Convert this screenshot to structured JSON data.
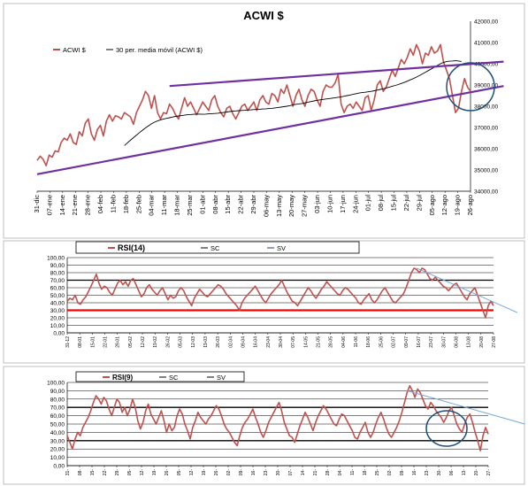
{
  "chart_data": [
    {
      "type": "line",
      "title": "ACWI $",
      "legend": [
        "ACWI $",
        "30 per. media móvil (ACWI $)"
      ],
      "legend_placement": "top-left",
      "y_axis_side": "right",
      "ylim": [
        34000,
        42000
      ],
      "yticks": [
        "34000,00",
        "35000,00",
        "36000,00",
        "37000,00",
        "38000,00",
        "39000,00",
        "40000,00",
        "41000,00",
        "42000,00"
      ],
      "x_ticks": [
        "31-dic",
        "07-ene",
        "14-ene",
        "21-ene",
        "28-ene",
        "04-feb",
        "11-feb",
        "18-feb",
        "25-feb",
        "04-mar",
        "11-mar",
        "18-mar",
        "25-mar",
        "01-abr",
        "08-abr",
        "15-abr",
        "22-abr",
        "29-abr",
        "06-may",
        "13-may",
        "20-may",
        "27-may",
        "03-jun",
        "10-jun",
        "17-jun",
        "24-jun",
        "01-jul",
        "08-jul",
        "15-jul",
        "22-jul",
        "29-jul",
        "05-ago",
        "12-ago",
        "19-ago",
        "26-ago"
      ],
      "series": [
        {
          "name": "ACWI $",
          "color": "#c0504d",
          "values": [
            35450,
            35650,
            35500,
            35200,
            35700,
            35600,
            35900,
            35850,
            36300,
            36500,
            36400,
            36700,
            36300,
            36200,
            36800,
            36600,
            37200,
            37400,
            36700,
            36400,
            36900,
            37100,
            36600,
            37300,
            37600,
            37300,
            37550,
            37500,
            37400,
            37700,
            37600,
            37500,
            37150,
            37700,
            38000,
            38300,
            38700,
            38500,
            37900,
            38500,
            37700,
            37400,
            37700,
            37650,
            38100,
            37900,
            37600,
            37400,
            37900,
            38400,
            38000,
            38200,
            37900,
            37600,
            37900,
            38200,
            38000,
            37800,
            38300,
            38500,
            38000,
            37700,
            37500,
            37900,
            38000,
            37650,
            37400,
            37700,
            38000,
            38100,
            37800,
            38000,
            38200,
            37800,
            38300,
            38500,
            38200,
            38100,
            38600,
            38500,
            38200,
            38800,
            38600,
            39000,
            38500,
            38000,
            38500,
            38800,
            38300,
            38000,
            38500,
            38800,
            38700,
            38300,
            38000,
            38700,
            39000,
            38900,
            38900,
            39100,
            39500,
            38100,
            37700,
            38000,
            38100,
            37900,
            38200,
            38000,
            37800,
            38400,
            38500,
            37800,
            38300,
            39000,
            39200,
            38700,
            38900,
            39300,
            39700,
            39400,
            39800,
            40200,
            40000,
            40300,
            40700,
            40400,
            40900,
            40600,
            40000,
            40500,
            40400,
            40800,
            40500,
            40600,
            40900,
            40100,
            39700,
            39300,
            38500,
            37700,
            37900,
            38700,
            39300,
            38900,
            38700
          ]
        },
        {
          "name": "30 per. media móvil (ACWI $)",
          "color": "#000000",
          "start_index": 29,
          "values": [
            36150,
            36280,
            36400,
            36520,
            36640,
            36760,
            36870,
            36980,
            37080,
            37170,
            37250,
            37310,
            37360,
            37400,
            37430,
            37460,
            37490,
            37520,
            37540,
            37560,
            37580,
            37600,
            37610,
            37620,
            37630,
            37630,
            37620,
            37630,
            37640,
            37650,
            37660,
            37670,
            37690,
            37710,
            37730,
            37750,
            37770,
            37780,
            37790,
            37800,
            37810,
            37820,
            37830,
            37840,
            37850,
            37860,
            37870,
            37880,
            37890,
            37900,
            37920,
            37940,
            37960,
            37980,
            38000,
            38030,
            38060,
            38090,
            38110,
            38130,
            38160,
            38190,
            38220,
            38250,
            38280,
            38300,
            38320,
            38340,
            38360,
            38380,
            38400,
            38420,
            38440,
            38470,
            38500,
            38530,
            38560,
            38590,
            38620,
            38640,
            38660,
            38680,
            38700,
            38730,
            38760,
            38790,
            38820,
            38860,
            38900,
            38940,
            38980,
            39020,
            39070,
            39120,
            39180,
            39240,
            39300,
            39370,
            39440,
            39520,
            39600,
            39680,
            39760,
            39840,
            39920,
            40000,
            40060,
            40100,
            40120,
            40130,
            40140,
            40130,
            40110
          ]
        }
      ],
      "trendlines": [
        {
          "color": "#7030a0",
          "from": [
            0,
            34800
          ],
          "to": [
            155,
            38950
          ]
        },
        {
          "color": "#7030a0",
          "from": [
            44,
            38950
          ],
          "to": [
            155,
            40100
          ]
        }
      ],
      "annotation": {
        "shape": "ellipse",
        "color": "#1f4e79"
      }
    },
    {
      "type": "line",
      "title": "",
      "legend": [
        "RSI(14)",
        "SC",
        "SV"
      ],
      "legend_placement": "top-left",
      "ylim": [
        0,
        100
      ],
      "yticks": [
        "0,00",
        "10,00",
        "20,00",
        "30,00",
        "40,00",
        "50,00",
        "60,00",
        "70,00",
        "80,00",
        "90,00",
        "100,00"
      ],
      "x_ticks": [
        "31-12",
        "08-01",
        "15-01",
        "22-01",
        "29-01",
        "05-02",
        "12-02",
        "19-02",
        "26-02",
        "05-03",
        "12-03",
        "19-03",
        "26-03",
        "02-04",
        "09-04",
        "16-04",
        "23-04",
        "30-04",
        "07-05",
        "14-05",
        "21-05",
        "28-05",
        "04-06",
        "11-06",
        "18-06",
        "25-06",
        "02-07",
        "09-07",
        "16-07",
        "23-07",
        "30-07",
        "06-08",
        "13-08",
        "20-08",
        "27-08"
      ],
      "series": [
        {
          "name": "RSI(14)",
          "color": "#c0504d",
          "values": [
            42,
            46,
            44,
            50,
            40,
            38,
            44,
            48,
            55,
            62,
            70,
            78,
            66,
            58,
            62,
            60,
            54,
            50,
            58,
            66,
            70,
            64,
            68,
            62,
            70,
            72,
            64,
            56,
            48,
            52,
            60,
            64,
            58,
            54,
            50,
            56,
            60,
            52,
            44,
            50,
            46,
            48,
            56,
            60,
            56,
            48,
            42,
            36,
            46,
            52,
            58,
            54,
            50,
            48,
            52,
            56,
            60,
            64,
            62,
            58,
            52,
            48,
            44,
            40,
            36,
            30,
            40,
            46,
            50,
            54,
            58,
            62,
            56,
            50,
            44,
            40,
            46,
            52,
            56,
            60,
            64,
            70,
            62,
            54,
            48,
            42,
            40,
            36,
            42,
            48,
            54,
            60,
            56,
            50,
            46,
            52,
            58,
            62,
            68,
            64,
            60,
            56,
            52,
            50,
            56,
            60,
            58,
            54,
            50,
            46,
            40,
            38,
            44,
            48,
            52,
            44,
            40,
            44,
            50,
            56,
            60,
            54,
            48,
            42,
            40,
            44,
            48,
            52,
            60,
            70,
            80,
            86,
            84,
            80,
            86,
            84,
            78,
            72,
            70,
            74,
            70,
            66,
            62,
            60,
            56,
            60,
            64,
            66,
            60,
            54,
            48,
            44,
            52,
            56,
            60,
            50,
            40,
            30,
            20,
            36,
            42,
            36
          ]
        },
        {
          "name": "SC",
          "color": "#000000",
          "values": [
            70
          ]
        },
        {
          "name": "SV",
          "color": "#ff0000",
          "values": [
            30
          ]
        }
      ],
      "trendlines": [
        {
          "color": "#6fa8dc",
          "from": [
            132,
            86
          ],
          "to": [
            170,
            27
          ]
        }
      ]
    },
    {
      "type": "line",
      "title": "",
      "legend": [
        "RSI(9)",
        "SC",
        "SV"
      ],
      "legend_placement": "top-left",
      "ylim": [
        0,
        100
      ],
      "yticks": [
        "0,00",
        "10,00",
        "20,00",
        "30,00",
        "40,00",
        "50,00",
        "60,00",
        "70,00",
        "80,00",
        "90,00",
        "100,00"
      ],
      "x_ticks": [
        "31-",
        "08-",
        "15-",
        "22-",
        "29-",
        "05-",
        "12-",
        "19-",
        "26-",
        "05-",
        "12-",
        "19-",
        "26-",
        "02-",
        "09-",
        "16-",
        "23-",
        "30-",
        "07-",
        "14-",
        "21-",
        "28-",
        "04-",
        "11-",
        "18-",
        "25-",
        "02-",
        "09-",
        "16-",
        "23-",
        "30-",
        "06-",
        "13-",
        "20-",
        "27-"
      ],
      "series": [
        {
          "name": "RSI(9)",
          "color": "#c0504d",
          "values": [
            36,
            28,
            20,
            32,
            40,
            36,
            46,
            52,
            58,
            66,
            76,
            84,
            80,
            74,
            82,
            78,
            68,
            60,
            70,
            80,
            76,
            64,
            70,
            60,
            68,
            80,
            70,
            54,
            44,
            52,
            66,
            74,
            62,
            56,
            50,
            58,
            66,
            54,
            40,
            50,
            42,
            46,
            60,
            68,
            62,
            50,
            42,
            32,
            46,
            54,
            64,
            58,
            54,
            50,
            56,
            60,
            66,
            72,
            68,
            60,
            50,
            44,
            40,
            34,
            28,
            24,
            36,
            46,
            52,
            56,
            62,
            68,
            58,
            50,
            40,
            34,
            42,
            52,
            58,
            64,
            70,
            76,
            66,
            52,
            44,
            36,
            34,
            28,
            38,
            48,
            56,
            64,
            58,
            50,
            42,
            52,
            60,
            66,
            72,
            68,
            62,
            56,
            50,
            48,
            56,
            62,
            60,
            54,
            48,
            42,
            34,
            32,
            40,
            46,
            52,
            40,
            34,
            40,
            50,
            58,
            64,
            56,
            46,
            38,
            34,
            40,
            46,
            54,
            64,
            76,
            88,
            96,
            90,
            82,
            92,
            88,
            80,
            72,
            68,
            76,
            72,
            66,
            62,
            58,
            52,
            58,
            66,
            70,
            60,
            50,
            44,
            40,
            50,
            58,
            62,
            52,
            40,
            30,
            18,
            36,
            46,
            38
          ]
        },
        {
          "name": "SC",
          "color": "#000000",
          "values": [
            70
          ]
        },
        {
          "name": "SV",
          "color": "#000000",
          "values": [
            30
          ]
        }
      ],
      "trendlines": [
        {
          "color": "#6fa8dc",
          "from": [
            130,
            90
          ],
          "to": [
            175,
            50
          ]
        }
      ],
      "annotation": {
        "shape": "ellipse",
        "color": "#1f4e79"
      }
    }
  ]
}
